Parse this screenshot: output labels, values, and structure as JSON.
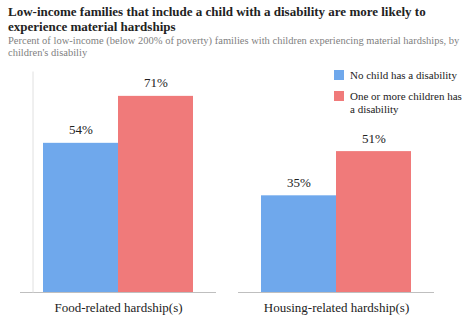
{
  "chart_data": {
    "type": "bar",
    "title": "Low-income families that include a child with a disability are more likely to experience material hardships",
    "subtitle": "Percent of low-income (below 200% of poverty) families with children experiencing material hardships, by children's disabiliy",
    "categories": [
      "Food-related hardship(s)",
      "Housing-related hardship(s)"
    ],
    "series": [
      {
        "name": "No child has a disability",
        "color": "#6fa8ec",
        "values": [
          54,
          35
        ],
        "value_labels": [
          "54%",
          "35%"
        ]
      },
      {
        "name": "One or more children has a disability",
        "color": "#f07a7a",
        "values": [
          71,
          51
        ],
        "value_labels": [
          "71%",
          "51%"
        ]
      }
    ],
    "ylim": [
      0,
      80
    ],
    "yticks": [],
    "grid": false,
    "tick_labels": "x",
    "data_labels": true,
    "legend": "top-right"
  }
}
